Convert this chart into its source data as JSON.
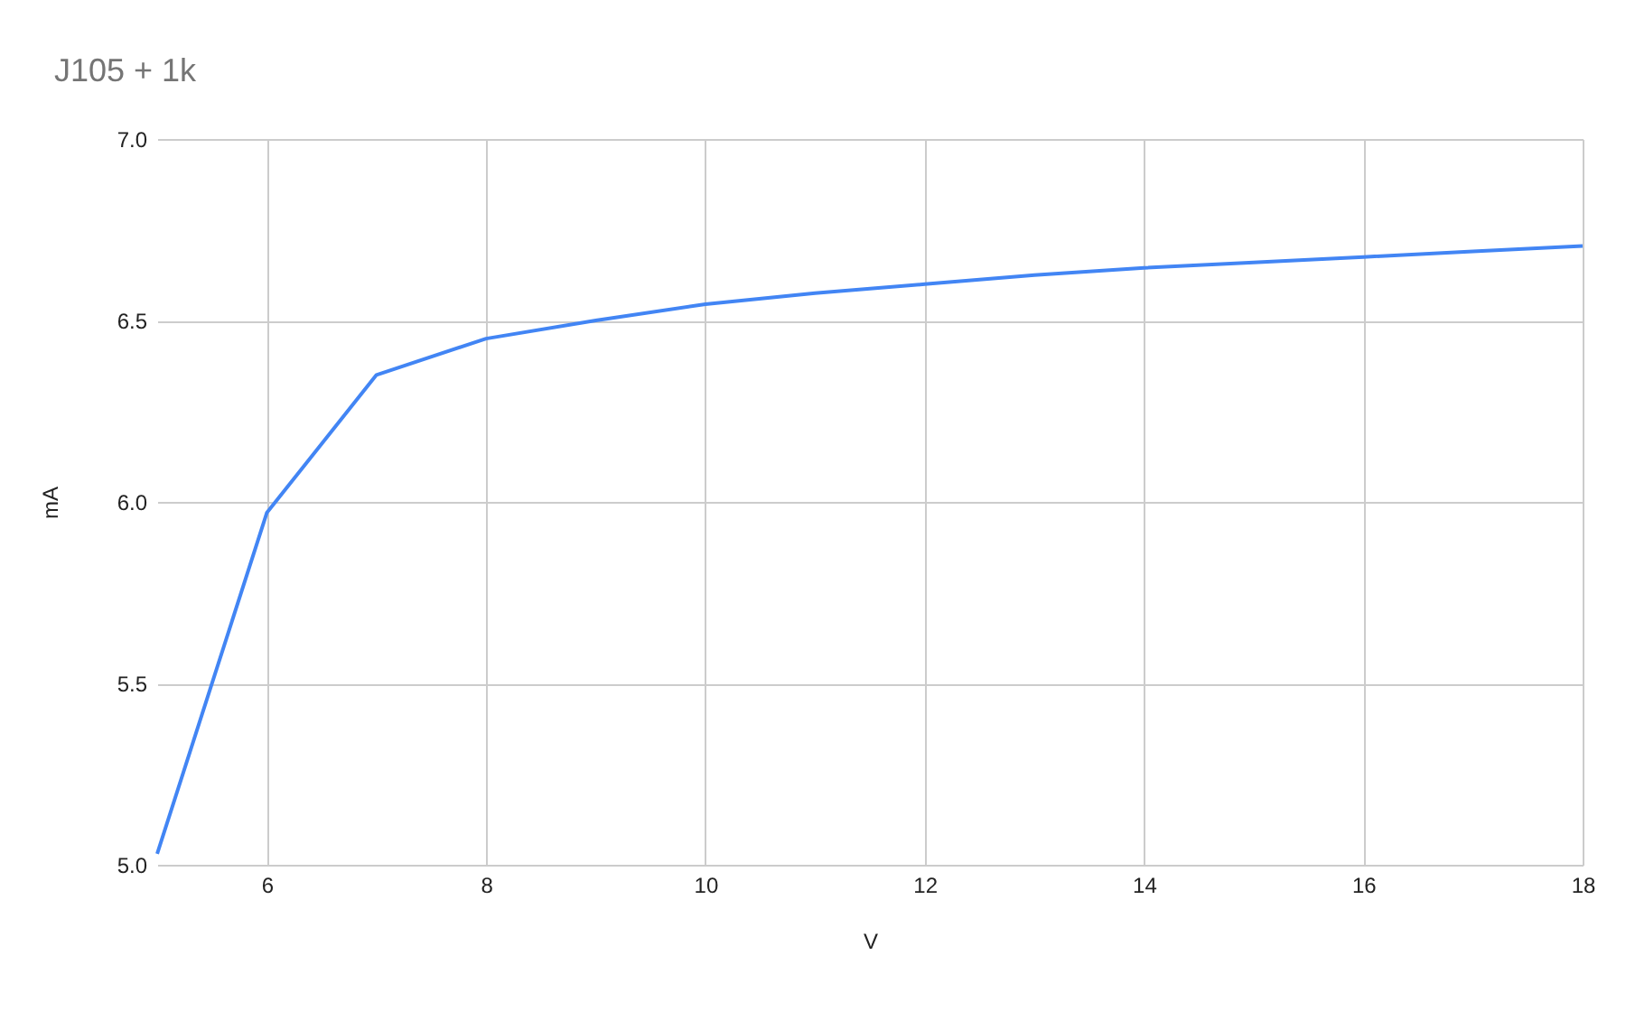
{
  "chart_data": {
    "type": "line",
    "title": "J105 + 1k",
    "xlabel": "V",
    "ylabel": "mA",
    "x": [
      5,
      6,
      7,
      8,
      9,
      10,
      11,
      12,
      13,
      14,
      15,
      16,
      17,
      18
    ],
    "series": [
      {
        "color": "#4285f4",
        "values": [
          5.03,
          5.97,
          6.35,
          6.45,
          6.5,
          6.545,
          6.575,
          6.6,
          6.625,
          6.645,
          6.66,
          6.675,
          6.69,
          6.705
        ]
      }
    ],
    "xlim": [
      5,
      18
    ],
    "xticks": [
      6,
      8,
      10,
      12,
      14,
      16,
      18
    ],
    "ylim": [
      5,
      7
    ],
    "yticks": [
      {
        "value": 5,
        "label": "5.0"
      },
      {
        "value": 5.5,
        "label": "5.5"
      },
      {
        "value": 6,
        "label": "6.0"
      },
      {
        "value": 6.5,
        "label": "6.5"
      },
      {
        "value": 7,
        "label": "7.0"
      }
    ],
    "grid": true,
    "marker": "none",
    "line_style": "solid"
  }
}
